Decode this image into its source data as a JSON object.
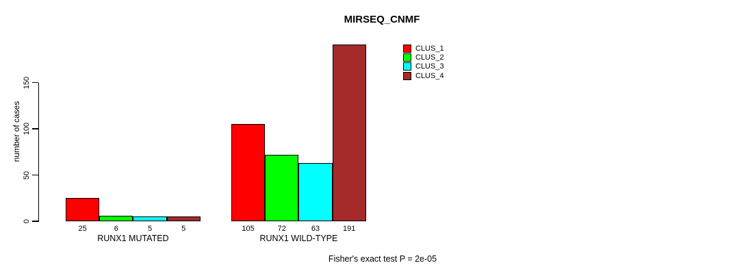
{
  "title": "MIRSEQ_CNMF",
  "colors": {
    "background": "#ffffff",
    "text": "#000000",
    "axis": "#000000",
    "bar_border": "#000000"
  },
  "chart_data": {
    "type": "bar",
    "title": "MIRSEQ_CNMF",
    "xlabel": "",
    "ylabel": "number of cases",
    "categories": [
      "RUNX1 MUTATED",
      "RUNX1 WILD-TYPE"
    ],
    "series": [
      {
        "name": "CLUS_1",
        "color": "#ff0000",
        "values": [
          25,
          105
        ]
      },
      {
        "name": "CLUS_2",
        "color": "#00ff00",
        "values": [
          6,
          72
        ]
      },
      {
        "name": "CLUS_3",
        "color": "#00ffff",
        "values": [
          5,
          63
        ]
      },
      {
        "name": "CLUS_4",
        "color": "#a52a2a",
        "values": [
          5,
          191
        ]
      }
    ],
    "yticks": [
      0,
      50,
      100,
      150
    ],
    "ylim": [
      0,
      200
    ],
    "grid": false,
    "legend_position": "top-right",
    "bar_value_labels": [
      [
        25,
        6,
        5,
        5
      ],
      [
        105,
        72,
        63,
        191
      ]
    ],
    "annotation": "Fisher's exact test P = 2e-05"
  }
}
